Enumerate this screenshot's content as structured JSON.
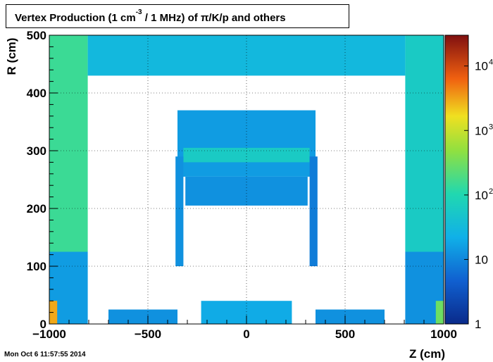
{
  "title": {
    "prefix": "Vertex Production (1 cm",
    "superscript": "-3",
    "suffix": " / 1 MHz) of   π/K/p and others"
  },
  "timestamp": "Mon Oct  6 11:57:55 2014",
  "chart_data": {
    "type": "heatmap",
    "xlabel": "Z (cm)",
    "ylabel": "R (cm)",
    "xlim": [
      -1000,
      1000
    ],
    "ylim": [
      0,
      500
    ],
    "xticks": [
      {
        "value": -1000,
        "label": "−1000"
      },
      {
        "value": -500,
        "label": "−500"
      },
      {
        "value": 0,
        "label": "0"
      },
      {
        "value": 500,
        "label": "500"
      },
      {
        "value": 1000,
        "label": "1000"
      }
    ],
    "yticks": [
      {
        "value": 0,
        "label": "0"
      },
      {
        "value": 100,
        "label": "100"
      },
      {
        "value": 200,
        "label": "200"
      },
      {
        "value": 300,
        "label": "300"
      },
      {
        "value": 400,
        "label": "400"
      },
      {
        "value": 500,
        "label": "500"
      }
    ],
    "grid": true,
    "colorbar": {
      "scale": "log",
      "range": [
        1,
        30000
      ],
      "labels": [
        {
          "value": 1,
          "base": "1",
          "exp": ""
        },
        {
          "value": 10,
          "base": "10",
          "exp": ""
        },
        {
          "value": 100,
          "base": "10",
          "exp": "2"
        },
        {
          "value": 1000,
          "base": "10",
          "exp": "3"
        },
        {
          "value": 10000,
          "base": "10",
          "exp": "4"
        }
      ]
    },
    "regions": [
      {
        "z": [
          -1000,
          -805
        ],
        "r": [
          125,
          500
        ],
        "value": 150
      },
      {
        "z": [
          -1000,
          -805
        ],
        "r": [
          0,
          125
        ],
        "value": 15
      },
      {
        "z": [
          805,
          1000
        ],
        "r": [
          125,
          500
        ],
        "value": 60
      },
      {
        "z": [
          805,
          1000
        ],
        "r": [
          0,
          125
        ],
        "value": 12
      },
      {
        "z": [
          -805,
          805
        ],
        "r": [
          430,
          500
        ],
        "value": 30
      },
      {
        "z": [
          -350,
          350
        ],
        "r": [
          255,
          370
        ],
        "value": 15
      },
      {
        "z": [
          -320,
          320
        ],
        "r": [
          280,
          305
        ],
        "value": 60
      },
      {
        "z": [
          -310,
          310
        ],
        "r": [
          205,
          255
        ],
        "value": 12
      },
      {
        "z": [
          -360,
          -320
        ],
        "r": [
          100,
          290
        ],
        "value": 12
      },
      {
        "z": [
          320,
          360
        ],
        "r": [
          100,
          290
        ],
        "value": 8
      },
      {
        "z": [
          -230,
          230
        ],
        "r": [
          0,
          40
        ],
        "value": 20
      },
      {
        "z": [
          -700,
          -350
        ],
        "r": [
          0,
          25
        ],
        "value": 12
      },
      {
        "z": [
          350,
          700
        ],
        "r": [
          0,
          25
        ],
        "value": 12
      },
      {
        "z": [
          -1000,
          -960
        ],
        "r": [
          0,
          40
        ],
        "value": 3000
      },
      {
        "z": [
          960,
          1000
        ],
        "r": [
          0,
          40
        ],
        "value": 300
      }
    ]
  }
}
